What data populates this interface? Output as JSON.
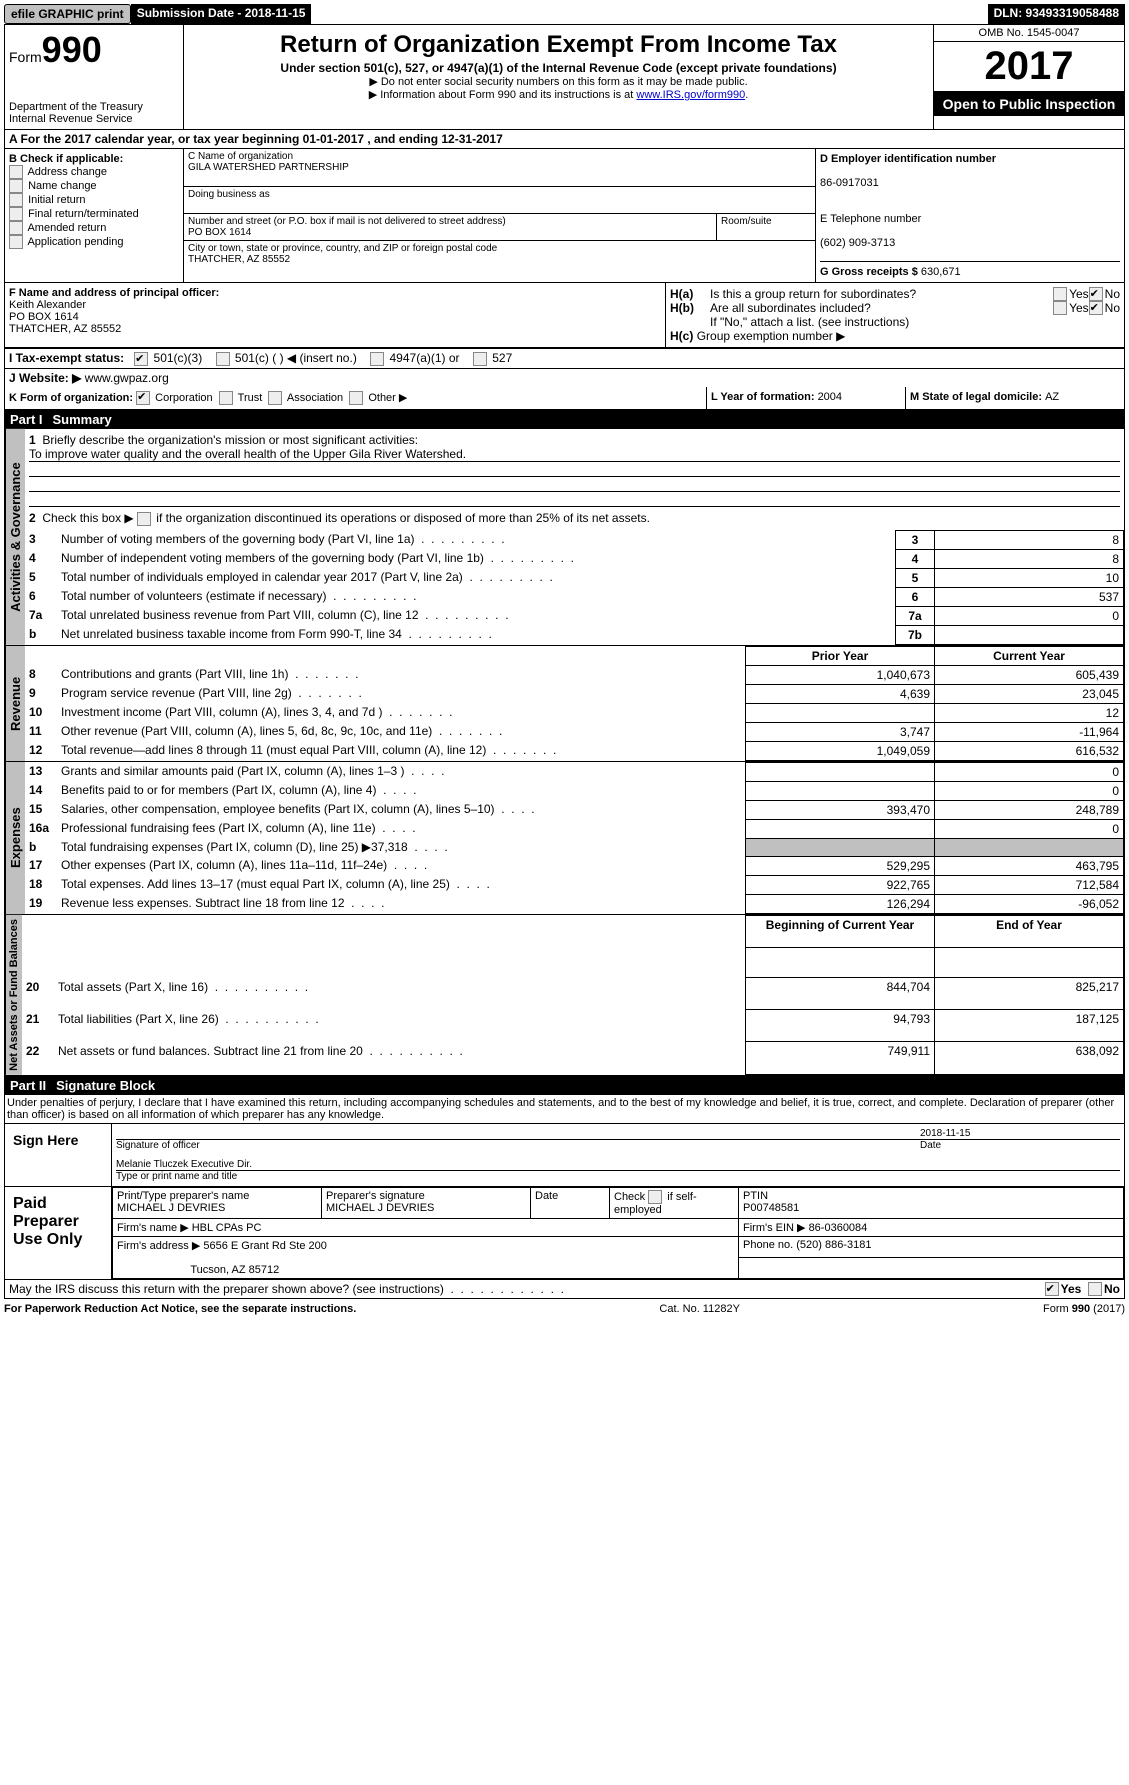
{
  "topbar": {
    "efile": "efile GRAPHIC print",
    "submission": "Submission Date - 2018-11-15",
    "dln": "DLN: 93493319058488"
  },
  "header": {
    "form_word": "Form",
    "form_num": "990",
    "dept": "Department of the Treasury",
    "irs": "Internal Revenue Service",
    "title": "Return of Organization Exempt From Income Tax",
    "subtitle": "Under section 501(c), 527, or 4947(a)(1) of the Internal Revenue Code (except private foundations)",
    "note1": "▶ Do not enter social security numbers on this form as it may be made public.",
    "note2_pre": "▶ Information about Form 990 and its instructions is at ",
    "note2_link": "www.IRS.gov/form990",
    "omb": "OMB No. 1545-0047",
    "year": "2017",
    "open": "Open to Public Inspection"
  },
  "sectionA": {
    "text": "A  For the 2017 calendar year, or tax year beginning 01-01-2017   , and ending 12-31-2017"
  },
  "sectionB": {
    "label": "B Check if applicable:",
    "items": [
      "Address change",
      "Name change",
      "Initial return",
      "Final return/terminated",
      "Amended return",
      "Application pending"
    ]
  },
  "sectionC": {
    "name_lbl": "C Name of organization",
    "name": "GILA WATERSHED PARTNERSHIP",
    "dba_lbl": "Doing business as",
    "addr_lbl": "Number and street (or P.O. box if mail is not delivered to street address)",
    "room_lbl": "Room/suite",
    "addr": "PO BOX 1614",
    "city_lbl": "City or town, state or province, country, and ZIP or foreign postal code",
    "city": "THATCHER, AZ  85552"
  },
  "sectionD": {
    "ein_lbl": "D Employer identification number",
    "ein": "86-0917031",
    "tel_lbl": "E Telephone number",
    "tel": "(602) 909-3713",
    "gross_lbl": "G Gross receipts $ ",
    "gross": "630,671"
  },
  "sectionF": {
    "label": "F  Name and address of principal officer:",
    "name": "Keith Alexander",
    "addr1": "PO BOX 1614",
    "addr2": "THATCHER, AZ  85552"
  },
  "sectionH": {
    "ha_lbl": "H(a)",
    "ha_q": "Is this a group return for subordinates?",
    "hb_lbl": "H(b)",
    "hb_q": "Are all subordinates included?",
    "hb_note": "If \"No,\" attach a list. (see instructions)",
    "hc_lbl": "H(c)",
    "hc_q": "Group exemption number ▶",
    "yes": "Yes",
    "no": "No"
  },
  "sectionI": {
    "label": "I  Tax-exempt status:",
    "opt1": "501(c)(3)",
    "opt2": "501(c) (   ) ◀ (insert no.)",
    "opt3": "4947(a)(1) or",
    "opt4": "527"
  },
  "sectionJ": {
    "label": "J  Website: ▶",
    "value": "www.gwpaz.org"
  },
  "sectionK": {
    "label": "K Form of organization:",
    "opts": [
      "Corporation",
      "Trust",
      "Association",
      "Other ▶"
    ]
  },
  "sectionL": {
    "label": "L Year of formation: ",
    "value": "2004"
  },
  "sectionM": {
    "label": "M State of legal domicile: ",
    "value": "AZ"
  },
  "part1": {
    "label": "Part I",
    "title": "Summary",
    "vert1": "Activities & Governance",
    "line1_label": "1",
    "line1_text": "Briefly describe the organization's mission or most significant activities:",
    "line1_val": "To improve water quality and the overall health of the Upper Gila River Watershed.",
    "line2_label": "2",
    "line2_text": "Check this box ▶        if the organization discontinued its operations or disposed of more than 25% of its net assets.",
    "gov_rows": [
      {
        "n": "3",
        "t": "Number of voting members of the governing body (Part VI, line 1a)",
        "ln": "3",
        "v": "8"
      },
      {
        "n": "4",
        "t": "Number of independent voting members of the governing body (Part VI, line 1b)",
        "ln": "4",
        "v": "8"
      },
      {
        "n": "5",
        "t": "Total number of individuals employed in calendar year 2017 (Part V, line 2a)",
        "ln": "5",
        "v": "10"
      },
      {
        "n": "6",
        "t": "Total number of volunteers (estimate if necessary)",
        "ln": "6",
        "v": "537"
      },
      {
        "n": "7a",
        "t": "Total unrelated business revenue from Part VIII, column (C), line 12",
        "ln": "7a",
        "v": "0"
      },
      {
        "n": "b",
        "t": "Net unrelated business taxable income from Form 990-T, line 34",
        "ln": "7b",
        "v": ""
      }
    ],
    "vert2": "Revenue",
    "col_prior": "Prior Year",
    "col_current": "Current Year",
    "rev_rows": [
      {
        "n": "8",
        "t": "Contributions and grants (Part VIII, line 1h)",
        "p": "1,040,673",
        "c": "605,439"
      },
      {
        "n": "9",
        "t": "Program service revenue (Part VIII, line 2g)",
        "p": "4,639",
        "c": "23,045"
      },
      {
        "n": "10",
        "t": "Investment income (Part VIII, column (A), lines 3, 4, and 7d )",
        "p": "",
        "c": "12"
      },
      {
        "n": "11",
        "t": "Other revenue (Part VIII, column (A), lines 5, 6d, 8c, 9c, 10c, and 11e)",
        "p": "3,747",
        "c": "-11,964"
      },
      {
        "n": "12",
        "t": "Total revenue—add lines 8 through 11 (must equal Part VIII, column (A), line 12)",
        "p": "1,049,059",
        "c": "616,532"
      }
    ],
    "vert3": "Expenses",
    "exp_rows": [
      {
        "n": "13",
        "t": "Grants and similar amounts paid (Part IX, column (A), lines 1–3 )",
        "p": "",
        "c": "0"
      },
      {
        "n": "14",
        "t": "Benefits paid to or for members (Part IX, column (A), line 4)",
        "p": "",
        "c": "0"
      },
      {
        "n": "15",
        "t": "Salaries, other compensation, employee benefits (Part IX, column (A), lines 5–10)",
        "p": "393,470",
        "c": "248,789"
      },
      {
        "n": "16a",
        "t": "Professional fundraising fees (Part IX, column (A), line 11e)",
        "p": "",
        "c": "0"
      },
      {
        "n": "b",
        "t": "Total fundraising expenses (Part IX, column (D), line 25) ▶37,318",
        "p": "SHADE",
        "c": "SHADE"
      },
      {
        "n": "17",
        "t": "Other expenses (Part IX, column (A), lines 11a–11d, 11f–24e)",
        "p": "529,295",
        "c": "463,795"
      },
      {
        "n": "18",
        "t": "Total expenses. Add lines 13–17 (must equal Part IX, column (A), line 25)",
        "p": "922,765",
        "c": "712,584"
      },
      {
        "n": "19",
        "t": "Revenue less expenses. Subtract line 18 from line 12",
        "p": "126,294",
        "c": "-96,052"
      }
    ],
    "vert4": "Net Assets or Fund Balances",
    "col_begin": "Beginning of Current Year",
    "col_end": "End of Year",
    "net_rows": [
      {
        "n": "20",
        "t": "Total assets (Part X, line 16)",
        "p": "844,704",
        "c": "825,217"
      },
      {
        "n": "21",
        "t": "Total liabilities (Part X, line 26)",
        "p": "94,793",
        "c": "187,125"
      },
      {
        "n": "22",
        "t": "Net assets or fund balances. Subtract line 21 from line 20",
        "p": "749,911",
        "c": "638,092"
      }
    ]
  },
  "part2": {
    "label": "Part II",
    "title": "Signature Block",
    "perjury": "Under penalties of perjury, I declare that I have examined this return, including accompanying schedules and statements, and to the best of my knowledge and belief, it is true, correct, and complete. Declaration of preparer (other than officer) is based on all information of which preparer has any knowledge.",
    "sign_here": "Sign Here",
    "sig_date": "2018-11-15",
    "sig_officer_lbl": "Signature of officer",
    "sig_date_lbl": "Date",
    "sig_name": "Melanie Tluczek  Executive Dir.",
    "sig_name_lbl": "Type or print name and title",
    "paid": "Paid Preparer Use Only",
    "prep_name_lbl": "Print/Type preparer's name",
    "prep_name": "MICHAEL J DEVRIES",
    "prep_sig_lbl": "Preparer's signature",
    "prep_sig": "MICHAEL J DEVRIES",
    "prep_date_lbl": "Date",
    "prep_check_lbl": "Check         if self-employed",
    "ptin_lbl": "PTIN",
    "ptin": "P00748581",
    "firm_name_lbl": "Firm's name     ▶ ",
    "firm_name": "HBL CPAs PC",
    "firm_ein_lbl": "Firm's EIN ▶ ",
    "firm_ein": "86-0360084",
    "firm_addr_lbl": "Firm's address ▶ ",
    "firm_addr": "5656 E Grant Rd Ste 200",
    "firm_city": "Tucson, AZ  85712",
    "phone_lbl": "Phone no. ",
    "phone": "(520) 886-3181"
  },
  "footer": {
    "discuss": "May the IRS discuss this return with the preparer shown above? (see instructions)",
    "yes": "Yes",
    "no": "No",
    "paperwork": "For Paperwork Reduction Act Notice, see the separate instructions.",
    "cat": "Cat. No. 11282Y",
    "form": "Form 990 (2017)"
  }
}
